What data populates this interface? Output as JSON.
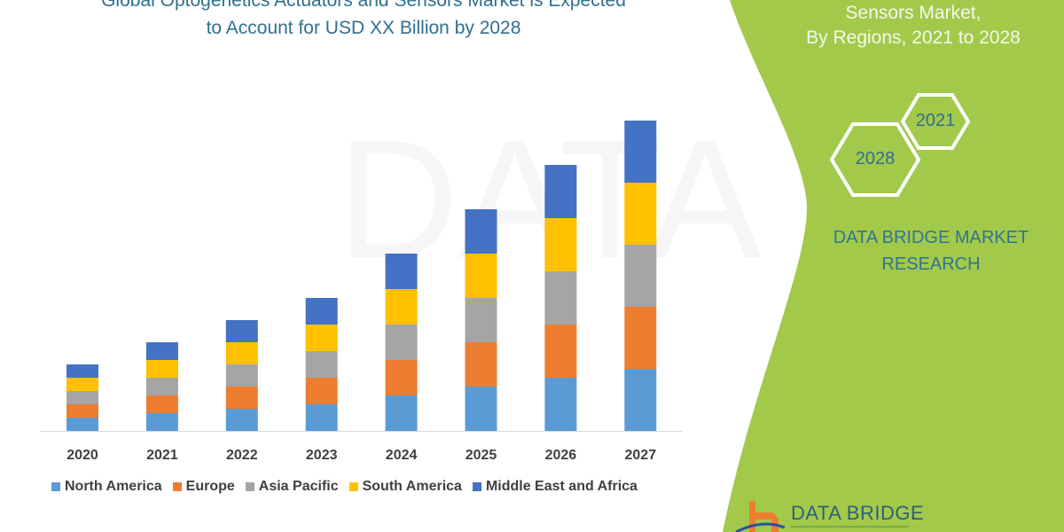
{
  "header": {
    "title_line1": "Global Optogenetics Actuators and Sensors Market is Expected",
    "title_line2": "to Account for USD XX Billion by 2028"
  },
  "side_panel": {
    "title_line1": "Sensors Market,",
    "title_line2": "By Regions, 2021 to 2028",
    "hex_start": "2021",
    "hex_end": "2028",
    "brand_line1": "DATA BRIDGE MARKET",
    "brand_line2": "RESEARCH",
    "logo_text": "DATA BRIDGE",
    "panel_color": "#a3c94b"
  },
  "chart_data": {
    "type": "bar",
    "stacked": true,
    "categories": [
      "2020",
      "2021",
      "2022",
      "2023",
      "2024",
      "2025",
      "2026",
      "2027"
    ],
    "series": [
      {
        "name": "North America",
        "color": "#5b9bd5",
        "values": [
          15,
          20,
          25,
          30,
          40,
          50,
          60,
          70
        ]
      },
      {
        "name": "Europe",
        "color": "#ed7d31",
        "values": [
          15,
          20,
          25,
          30,
          40,
          50,
          60,
          70
        ]
      },
      {
        "name": "Asia Pacific",
        "color": "#a5a5a5",
        "values": [
          15,
          20,
          25,
          30,
          40,
          50,
          60,
          70
        ]
      },
      {
        "name": "South America",
        "color": "#ffc000",
        "values": [
          15,
          20,
          25,
          30,
          40,
          50,
          60,
          70
        ]
      },
      {
        "name": "Middle East and Africa",
        "color": "#4472c4",
        "values": [
          15,
          20,
          25,
          30,
          40,
          50,
          60,
          70
        ]
      }
    ],
    "xlabel": "",
    "ylabel": "",
    "y_axis_shown": false,
    "grid": false,
    "legend_placement": "bottom"
  }
}
